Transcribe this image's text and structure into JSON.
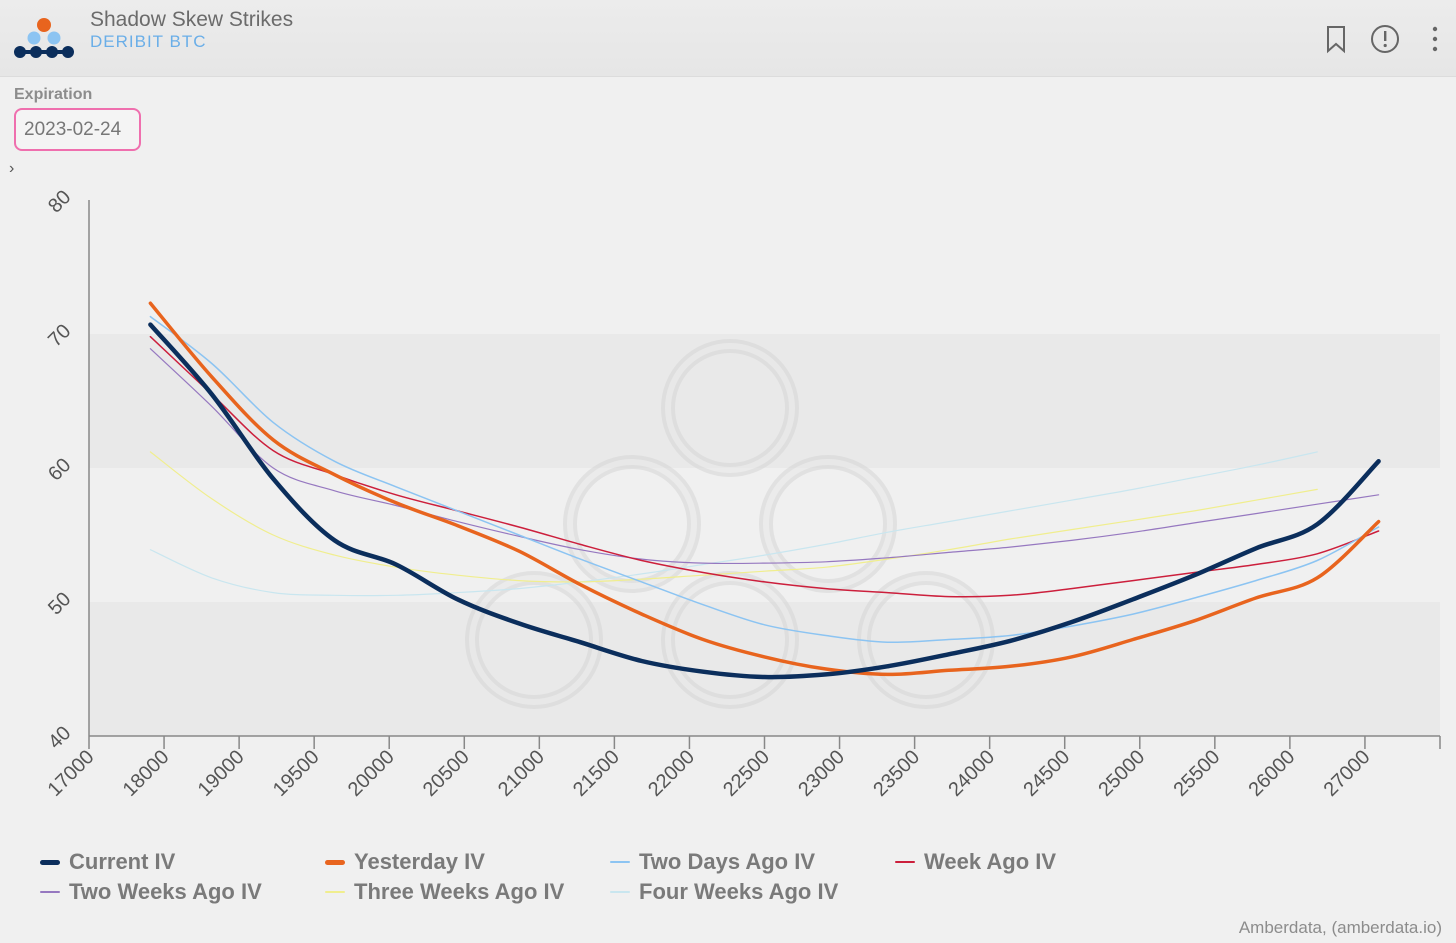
{
  "header": {
    "title": "Shadow Skew Strikes",
    "subtitle": "DERIBIT BTC",
    "icons": [
      "amberdata-logo-icon",
      "bookmark-icon",
      "info-icon",
      "more-vertical-icon"
    ]
  },
  "controls": {
    "expiration_label": "Expiration",
    "expiration_value": "2023-02-24"
  },
  "credit": "Amberdata, (amberdata.io)",
  "colors": {
    "current": "#0b2e5c",
    "yesterday": "#e8641e",
    "two_days": "#8cc4f2",
    "week": "#cc1f3c",
    "two_weeks": "#9678c0",
    "three_weeks": "#f0ee8e",
    "four_weeks": "#c9e6ef"
  },
  "chart_data": {
    "type": "line",
    "xlim": [
      16500,
      27500
    ],
    "ylim": [
      40,
      80
    ],
    "x_ticks": [
      17000,
      18000,
      19000,
      19500,
      20000,
      20500,
      21000,
      21500,
      22000,
      22500,
      23000,
      23500,
      24000,
      24500,
      25000,
      25500,
      26000,
      27000
    ],
    "y_ticks": [
      40,
      50,
      60,
      70,
      80
    ],
    "grid": "alternating horizontal bands",
    "legend_position": "bottom",
    "series": [
      {
        "name": "Current IV",
        "x": [
          17000,
          17500,
          18000,
          18500,
          19000,
          19500,
          20000,
          20500,
          21000,
          21500,
          22000,
          22500,
          23000,
          23500,
          24000,
          24500,
          25000,
          25500,
          26000,
          26500,
          27000
        ],
        "y": [
          70.7,
          65.5,
          59.2,
          54.6,
          52.8,
          50.2,
          48.4,
          47.0,
          45.6,
          44.8,
          44.4,
          44.6,
          45.2,
          46.1,
          47.1,
          48.5,
          50.2,
          52.0,
          54.0,
          55.8,
          60.5
        ]
      },
      {
        "name": "Yesterday IV",
        "x": [
          17000,
          17500,
          18000,
          18500,
          19000,
          19500,
          20000,
          20500,
          21000,
          21500,
          22000,
          22500,
          23000,
          23500,
          24000,
          24500,
          25000,
          25500,
          26000,
          26500,
          27000
        ],
        "y": [
          72.3,
          66.8,
          62.1,
          59.5,
          57.4,
          55.7,
          53.8,
          51.3,
          49.1,
          47.2,
          45.9,
          45.0,
          44.6,
          44.9,
          45.2,
          45.9,
          47.2,
          48.6,
          50.3,
          51.8,
          56.0
        ]
      },
      {
        "name": "Two Days Ago IV",
        "x": [
          17000,
          17500,
          18000,
          18500,
          19000,
          19500,
          20000,
          20500,
          21000,
          21500,
          22000,
          22500,
          23000,
          23500,
          24000,
          24500,
          25000,
          25500,
          26000,
          26500,
          27000
        ],
        "y": [
          71.3,
          67.8,
          63.4,
          60.5,
          58.6,
          56.8,
          55.0,
          53.2,
          51.5,
          49.8,
          48.3,
          47.5,
          47.0,
          47.2,
          47.5,
          48.2,
          49.1,
          50.3,
          51.6,
          53.1,
          55.6
        ]
      },
      {
        "name": "Week Ago IV",
        "x": [
          17000,
          17500,
          18000,
          18500,
          19000,
          19500,
          20000,
          20500,
          21000,
          21500,
          22000,
          22500,
          23000,
          23500,
          24000,
          24500,
          25000,
          25500,
          26000,
          26500,
          27000
        ],
        "y": [
          69.8,
          65.5,
          61.3,
          59.5,
          58.0,
          56.8,
          55.6,
          54.3,
          53.1,
          52.2,
          51.5,
          51.0,
          50.7,
          50.4,
          50.5,
          51.0,
          51.6,
          52.2,
          52.8,
          53.6,
          55.3
        ]
      },
      {
        "name": "Two Weeks Ago IV",
        "x": [
          17000,
          17500,
          18000,
          18500,
          19000,
          19500,
          20000,
          20500,
          21000,
          21500,
          22000,
          22500,
          23000,
          23500,
          24000,
          24500,
          25000,
          25500,
          26000,
          26500,
          27000
        ],
        "y": [
          68.9,
          64.6,
          60.0,
          58.3,
          57.2,
          56.0,
          54.9,
          53.9,
          53.2,
          52.9,
          52.9,
          53.0,
          53.3,
          53.7,
          54.1,
          54.6,
          55.2,
          55.9,
          56.6,
          57.3,
          58.0
        ]
      },
      {
        "name": "Three Weeks Ago IV",
        "x": [
          17000,
          17500,
          18000,
          18500,
          19000,
          19500,
          20000,
          20500,
          21000,
          21500,
          22000,
          22500,
          23000,
          23500,
          24000,
          24500,
          25000,
          25500,
          26000,
          26500
        ],
        "y": [
          61.2,
          57.7,
          55.0,
          53.5,
          52.6,
          52.0,
          51.6,
          51.5,
          51.7,
          52.0,
          52.3,
          52.6,
          53.2,
          53.9,
          54.7,
          55.4,
          56.1,
          56.8,
          57.6,
          58.4
        ]
      },
      {
        "name": "Four Weeks Ago IV",
        "x": [
          17000,
          17500,
          18000,
          18500,
          19000,
          19500,
          20000,
          20500,
          21000,
          21500,
          22000,
          22500,
          23000,
          23500,
          24000,
          24500,
          25000,
          25500,
          26000,
          26500
        ],
        "y": [
          53.9,
          51.8,
          50.7,
          50.5,
          50.5,
          50.7,
          51.0,
          51.5,
          52.1,
          52.8,
          53.5,
          54.3,
          55.2,
          56.0,
          56.8,
          57.6,
          58.4,
          59.3,
          60.2,
          61.2
        ]
      }
    ]
  },
  "legend": [
    {
      "label": "Current IV",
      "color": "#0b2e5c",
      "thick": true
    },
    {
      "label": "Yesterday IV",
      "color": "#e8641e",
      "thick": true
    },
    {
      "label": "Two Days Ago IV",
      "color": "#8cc4f2",
      "thick": false
    },
    {
      "label": "Week Ago IV",
      "color": "#cc1f3c",
      "thick": false
    },
    {
      "label": "Two Weeks Ago IV",
      "color": "#9678c0",
      "thick": false
    },
    {
      "label": "Three Weeks Ago IV",
      "color": "#f0ee8e",
      "thick": false
    },
    {
      "label": "Four Weeks Ago IV",
      "color": "#c9e6ef",
      "thick": false
    }
  ]
}
